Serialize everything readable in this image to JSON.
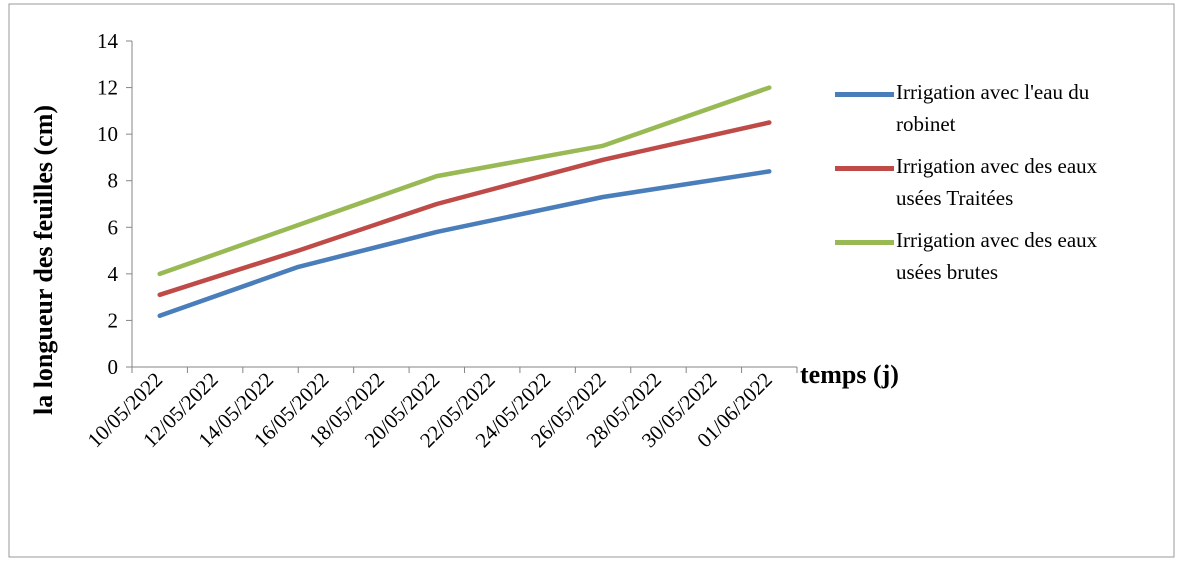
{
  "chart_data": {
    "type": "line",
    "xlabel": "temps (j)",
    "ylabel": "la longueur des feuilles (cm)",
    "categories": [
      "10/05/2022",
      "12/05/2022",
      "14/05/2022",
      "16/05/2022",
      "18/05/2022",
      "20/05/2022",
      "22/05/2022",
      "24/05/2022",
      "26/05/2022",
      "28/05/2022",
      "30/05/2022",
      "01/06/2022"
    ],
    "ylim": [
      0,
      14
    ],
    "yticks": [
      "0",
      "2",
      "4",
      "6",
      "8",
      "10",
      "12",
      "14"
    ],
    "grid": false,
    "legend_position": "right",
    "series": [
      {
        "name": "Irrigation avec l'eau du robinet",
        "color": "#4a7ebb",
        "points": [
          [
            0,
            2.2
          ],
          [
            2.5,
            4.3
          ],
          [
            5,
            5.8
          ],
          [
            8,
            7.3
          ],
          [
            11,
            8.4
          ]
        ]
      },
      {
        "name": "Irrigation avec des eaux usées Traitées",
        "color": "#be4b48",
        "points": [
          [
            0,
            3.1
          ],
          [
            2.5,
            5.0
          ],
          [
            5,
            7.0
          ],
          [
            8,
            8.9
          ],
          [
            11,
            10.5
          ]
        ]
      },
      {
        "name": "Irrigation avec des eaux usées brutes",
        "color": "#98b954",
        "points": [
          [
            0,
            4.0
          ],
          [
            2.5,
            6.1
          ],
          [
            5,
            8.2
          ],
          [
            8,
            9.5
          ],
          [
            11,
            12.0
          ]
        ]
      }
    ]
  },
  "legend": {
    "items": [
      {
        "lines": [
          "Irrigation avec l'eau du",
          "robinet"
        ],
        "color": "#4a7ebb"
      },
      {
        "lines": [
          "Irrigation avec des eaux",
          "usées Traitées"
        ],
        "color": "#be4b48"
      },
      {
        "lines": [
          "Irrigation avec des eaux",
          "usées brutes"
        ],
        "color": "#98b954"
      }
    ]
  }
}
